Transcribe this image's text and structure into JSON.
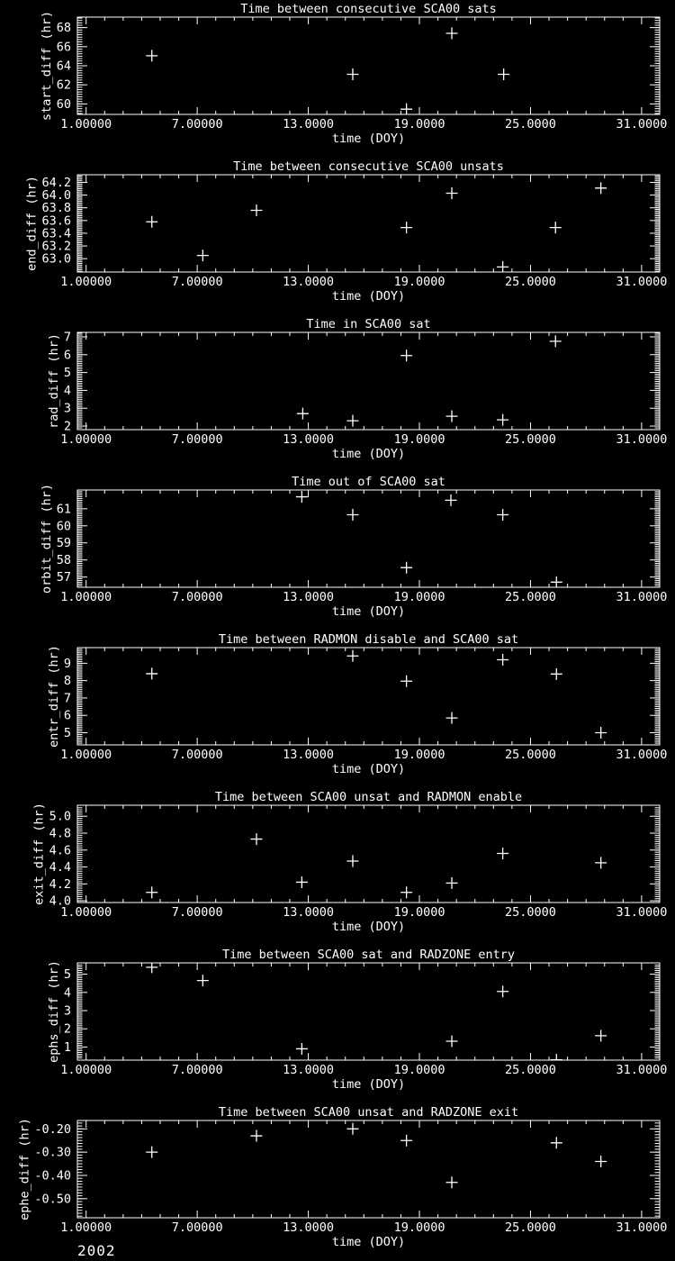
{
  "page": {
    "background": "#000000",
    "foreground": "#ffffff"
  },
  "footer": {
    "year": "2002"
  },
  "chart_data": [
    {
      "type": "scatter",
      "marker": "plus",
      "title": "Time between consecutive SCA00 sats",
      "xlabel": "time (DOY)",
      "ylabel": "start_diff (hr)",
      "xlim": [
        0.5,
        32.0
      ],
      "ylim": [
        58.9,
        69.1
      ],
      "xticks": {
        "values": [
          1,
          7,
          13,
          19,
          25,
          31
        ],
        "labels": [
          "1.00000",
          "7.00000",
          "13.0000",
          "19.0000",
          "25.0000",
          "31.0000"
        ],
        "minor_step": 1
      },
      "yticks": {
        "values": [
          60,
          62,
          64,
          66,
          68
        ],
        "labels": [
          "60",
          "62",
          "64",
          "66",
          "68"
        ],
        "minor_step": 0.25
      },
      "points": [
        [
          4.55,
          65.05
        ],
        [
          15.4,
          63.1
        ],
        [
          18.3,
          59.45
        ],
        [
          20.75,
          67.4
        ],
        [
          23.55,
          63.1
        ]
      ]
    },
    {
      "type": "scatter",
      "marker": "plus",
      "title": "Time between consecutive SCA00 unsats",
      "xlabel": "time (DOY)",
      "ylabel": "end_diff (hr)",
      "xlim": [
        0.5,
        32.0
      ],
      "ylim": [
        62.79,
        64.32
      ],
      "xticks": {
        "values": [
          1,
          7,
          13,
          19,
          25,
          31
        ],
        "labels": [
          "1.00000",
          "7.00000",
          "13.0000",
          "19.0000",
          "25.0000",
          "31.0000"
        ],
        "minor_step": 1
      },
      "yticks": {
        "values": [
          63.0,
          63.2,
          63.4,
          63.6,
          63.8,
          64.0,
          64.2
        ],
        "labels": [
          "63.0",
          "63.2",
          "63.4",
          "63.6",
          "63.8",
          "64.0",
          "64.2"
        ],
        "minor_step": 0.025
      },
      "points": [
        [
          4.55,
          63.58
        ],
        [
          7.3,
          63.05
        ],
        [
          10.2,
          63.76
        ],
        [
          18.3,
          63.49
        ],
        [
          20.75,
          64.03
        ],
        [
          23.5,
          62.87
        ],
        [
          26.35,
          63.49
        ],
        [
          28.8,
          64.11
        ]
      ]
    },
    {
      "type": "scatter",
      "marker": "plus",
      "title": "Time in SCA00 sat",
      "xlabel": "time (DOY)",
      "ylabel": "rad_diff (hr)",
      "xlim": [
        0.5,
        32.0
      ],
      "ylim": [
        1.8,
        7.25
      ],
      "xticks": {
        "values": [
          1,
          7,
          13,
          19,
          25,
          31
        ],
        "labels": [
          "1.00000",
          "7.00000",
          "13.0000",
          "19.0000",
          "25.0000",
          "31.0000"
        ],
        "minor_step": 1
      },
      "yticks": {
        "values": [
          2,
          3,
          4,
          5,
          6,
          7
        ],
        "labels": [
          "2",
          "3",
          "4",
          "5",
          "6",
          "7"
        ],
        "minor_step": 0.1
      },
      "points": [
        [
          12.7,
          2.7
        ],
        [
          15.4,
          2.3
        ],
        [
          18.3,
          5.95
        ],
        [
          20.75,
          2.55
        ],
        [
          23.5,
          2.35
        ],
        [
          26.35,
          6.75
        ]
      ]
    },
    {
      "type": "scatter",
      "marker": "plus",
      "title": "Time out of SCA00 sat",
      "xlabel": "time (DOY)",
      "ylabel": "orbit_diff (hr)",
      "xlim": [
        0.5,
        32.0
      ],
      "ylim": [
        56.4,
        62.1
      ],
      "xticks": {
        "values": [
          1,
          7,
          13,
          19,
          25,
          31
        ],
        "labels": [
          "1.00000",
          "7.00000",
          "13.0000",
          "19.0000",
          "25.0000",
          "31.0000"
        ],
        "minor_step": 1
      },
      "yticks": {
        "values": [
          57,
          58,
          59,
          60,
          61
        ],
        "labels": [
          "57",
          "58",
          "59",
          "60",
          "61"
        ],
        "minor_step": 0.1
      },
      "points": [
        [
          12.65,
          61.7
        ],
        [
          15.4,
          60.65
        ],
        [
          18.3,
          57.55
        ],
        [
          20.7,
          61.5
        ],
        [
          23.5,
          60.65
        ],
        [
          26.4,
          56.7
        ]
      ]
    },
    {
      "type": "scatter",
      "marker": "plus",
      "title": "Time between RADMON disable and SCA00 sat",
      "xlabel": "time (DOY)",
      "ylabel": "entr_diff (hr)",
      "xlim": [
        0.5,
        32.0
      ],
      "ylim": [
        4.3,
        9.9
      ],
      "xticks": {
        "values": [
          1,
          7,
          13,
          19,
          25,
          31
        ],
        "labels": [
          "1.00000",
          "7.00000",
          "13.0000",
          "19.0000",
          "25.0000",
          "31.0000"
        ],
        "minor_step": 1
      },
      "yticks": {
        "values": [
          5,
          6,
          7,
          8,
          9
        ],
        "labels": [
          "5",
          "6",
          "7",
          "8",
          "9"
        ],
        "minor_step": 0.1
      },
      "points": [
        [
          4.55,
          8.4
        ],
        [
          15.4,
          9.42
        ],
        [
          18.3,
          7.97
        ],
        [
          20.75,
          5.85
        ],
        [
          23.5,
          9.2
        ],
        [
          26.4,
          8.38
        ],
        [
          28.8,
          5.0
        ]
      ]
    },
    {
      "type": "scatter",
      "marker": "plus",
      "title": "Time between SCA00 unsat and RADMON enable",
      "xlabel": "time (DOY)",
      "ylabel": "exit_diff (hr)",
      "xlim": [
        0.5,
        32.0
      ],
      "ylim": [
        3.98,
        5.13
      ],
      "xticks": {
        "values": [
          1,
          7,
          13,
          19,
          25,
          31
        ],
        "labels": [
          "1.00000",
          "7.00000",
          "13.0000",
          "19.0000",
          "25.0000",
          "31.0000"
        ],
        "minor_step": 1
      },
      "yticks": {
        "values": [
          4.0,
          4.2,
          4.4,
          4.6,
          4.8,
          5.0
        ],
        "labels": [
          "4.0",
          "4.2",
          "4.4",
          "4.6",
          "4.8",
          "5.0"
        ],
        "minor_step": 0.025
      },
      "points": [
        [
          4.55,
          4.1
        ],
        [
          10.2,
          4.73
        ],
        [
          12.65,
          4.22
        ],
        [
          15.4,
          4.47
        ],
        [
          18.3,
          4.1
        ],
        [
          20.75,
          4.21
        ],
        [
          23.5,
          4.56
        ],
        [
          28.8,
          4.45
        ]
      ]
    },
    {
      "type": "scatter",
      "marker": "plus",
      "title": "Time between SCA00 sat and RADZONE entry",
      "xlabel": "time (DOY)",
      "ylabel": "ephs_diff (hr)",
      "xlim": [
        0.5,
        32.0
      ],
      "ylim": [
        0.28,
        5.62
      ],
      "xticks": {
        "values": [
          1,
          7,
          13,
          19,
          25,
          31
        ],
        "labels": [
          "1.00000",
          "7.00000",
          "13.0000",
          "19.0000",
          "25.0000",
          "31.0000"
        ],
        "minor_step": 1
      },
      "yticks": {
        "values": [
          1,
          2,
          3,
          4,
          5
        ],
        "labels": [
          "1",
          "2",
          "3",
          "4",
          "5"
        ],
        "minor_step": 0.1
      },
      "points": [
        [
          4.55,
          5.38
        ],
        [
          7.3,
          4.65
        ],
        [
          12.65,
          0.9
        ],
        [
          20.75,
          1.32
        ],
        [
          23.5,
          4.05
        ],
        [
          26.4,
          0.3
        ],
        [
          28.8,
          1.62
        ]
      ]
    },
    {
      "type": "scatter",
      "marker": "plus",
      "title": "Time between SCA00 unsat and RADZONE exit",
      "xlabel": "time (DOY)",
      "ylabel": "ephe_diff (hr)",
      "xlim": [
        0.5,
        32.0
      ],
      "ylim": [
        -0.582,
        -0.164
      ],
      "xticks": {
        "values": [
          1,
          7,
          13,
          19,
          25,
          31
        ],
        "labels": [
          "1.00000",
          "7.00000",
          "13.0000",
          "19.0000",
          "25.0000",
          "31.0000"
        ],
        "minor_step": 1
      },
      "yticks": {
        "values": [
          -0.5,
          -0.4,
          -0.3,
          -0.2
        ],
        "labels": [
          "-0.50",
          "-0.40",
          "-0.30",
          "-0.20"
        ],
        "minor_step": 0.0125
      },
      "points": [
        [
          4.55,
          -0.3
        ],
        [
          10.2,
          -0.23
        ],
        [
          15.4,
          -0.2
        ],
        [
          18.3,
          -0.25
        ],
        [
          20.75,
          -0.43
        ],
        [
          26.4,
          -0.26
        ],
        [
          28.8,
          -0.34
        ]
      ]
    }
  ]
}
